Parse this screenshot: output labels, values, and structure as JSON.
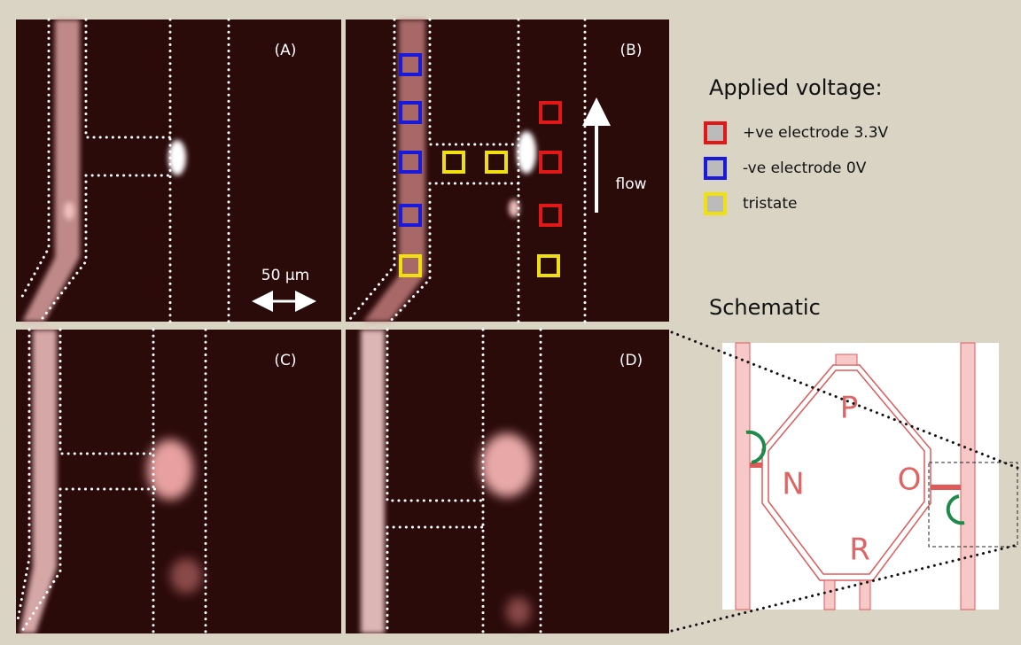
{
  "panels": [
    {
      "label": "(A)"
    },
    {
      "label": "(B)"
    },
    {
      "label": "(C)"
    },
    {
      "label": "(D)"
    }
  ],
  "scale_bar": "50 µm",
  "flow_label": "flow",
  "legend": {
    "title": "Applied voltage:",
    "items": [
      {
        "label": "+ve electrode 3.3V",
        "color": "#e01818"
      },
      {
        "label": "-ve electrode 0V",
        "color": "#1a1ad8"
      },
      {
        "label": "tristate",
        "color": "#f0e010"
      }
    ]
  },
  "schematic": {
    "title": "Schematic",
    "labels": [
      "P",
      "N",
      "O",
      "R"
    ]
  }
}
